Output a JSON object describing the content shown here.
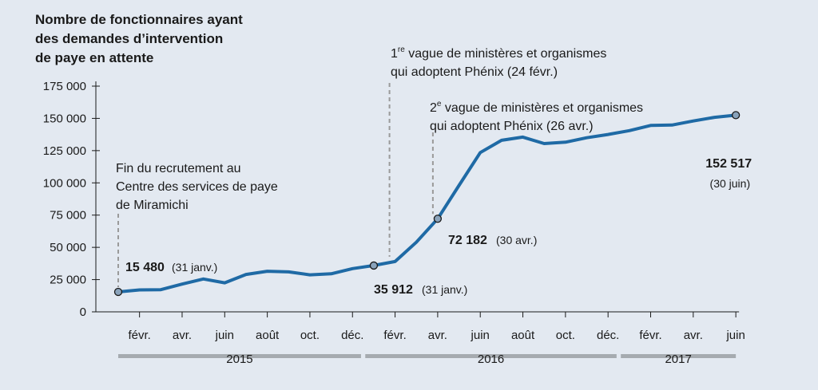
{
  "chart_data": {
    "type": "line",
    "title_lines": [
      "Nombre de fonctionnaires ayant",
      "des demandes d’intervention",
      "de paye en attente"
    ],
    "ylim": [
      0,
      175000
    ],
    "y_ticks": [
      0,
      25000,
      50000,
      75000,
      100000,
      125000,
      150000,
      175000
    ],
    "y_tick_labels": [
      "0",
      "25 000",
      "50 000",
      "75 000",
      "100 000",
      "125 000",
      "150 000",
      "175 000"
    ],
    "x_ticks": [
      {
        "t": 1,
        "label": "févr."
      },
      {
        "t": 3,
        "label": "avr."
      },
      {
        "t": 5,
        "label": "juin"
      },
      {
        "t": 7,
        "label": "août"
      },
      {
        "t": 9,
        "label": "oct."
      },
      {
        "t": 11,
        "label": "déc."
      },
      {
        "t": 13,
        "label": "févr."
      },
      {
        "t": 15,
        "label": "avr."
      },
      {
        "t": 17,
        "label": "juin"
      },
      {
        "t": 19,
        "label": "août"
      },
      {
        "t": 21,
        "label": "oct."
      },
      {
        "t": 23,
        "label": "déc."
      },
      {
        "t": 25,
        "label": "févr."
      },
      {
        "t": 27,
        "label": "avr."
      },
      {
        "t": 29,
        "label": "juin"
      }
    ],
    "years": [
      {
        "label": "2015",
        "from": 0,
        "to": 11.4
      },
      {
        "label": "2016",
        "from": 11.6,
        "to": 23.4
      },
      {
        "label": "2017",
        "from": 23.6,
        "to": 29
      }
    ],
    "series": [
      {
        "color": "#1f6aa5",
        "points": [
          [
            0,
            15480
          ],
          [
            1,
            17000
          ],
          [
            2,
            17200
          ],
          [
            3,
            21500
          ],
          [
            4,
            25500
          ],
          [
            5,
            22500
          ],
          [
            6,
            29000
          ],
          [
            7,
            31500
          ],
          [
            8,
            31000
          ],
          [
            9,
            28700
          ],
          [
            10,
            29500
          ],
          [
            11,
            33500
          ],
          [
            12,
            35912
          ],
          [
            13,
            39000
          ],
          [
            14,
            54000
          ],
          [
            15,
            72182
          ],
          [
            16,
            98000
          ],
          [
            17,
            123500
          ],
          [
            18,
            133000
          ],
          [
            19,
            135500
          ],
          [
            20,
            130500
          ],
          [
            21,
            131500
          ],
          [
            22,
            135000
          ],
          [
            23,
            137500
          ],
          [
            24,
            140500
          ],
          [
            25,
            144500
          ],
          [
            26,
            144800
          ],
          [
            27,
            148000
          ],
          [
            28,
            150800
          ],
          [
            29,
            152517
          ]
        ]
      }
    ],
    "markers": [
      {
        "t": 0,
        "value": 15480,
        "value_label": "15 480",
        "date_label": "(31 janv.)"
      },
      {
        "t": 12,
        "value": 35912,
        "value_label": "35 912",
        "date_label": "(31 janv.)"
      },
      {
        "t": 15,
        "value": 72182,
        "value_label": "72 182",
        "date_label": "(30 avr.)"
      },
      {
        "t": 29,
        "value": 152517,
        "value_label": "152 517",
        "date_label": "(30 juin)"
      }
    ],
    "annotations": [
      {
        "t": 0,
        "lines": [
          "Fin du recrutement au",
          "Centre des services de paye",
          "de Miramichi"
        ]
      },
      {
        "t": 13,
        "lines": [
          "1re vague de ministères et organismes",
          "qui adoptent Phénix (24 févr.)"
        ]
      },
      {
        "t": 15,
        "lines": [
          "2e vague de ministères et organismes",
          "qui adoptent Phénix (26 avr.)"
        ]
      }
    ],
    "colors": {
      "background": "#e3e9f1",
      "line": "#1f6aa5",
      "marker": "#8aa3bb",
      "year_bar": "#a6abb0",
      "leader": "#9a9a9a"
    }
  }
}
